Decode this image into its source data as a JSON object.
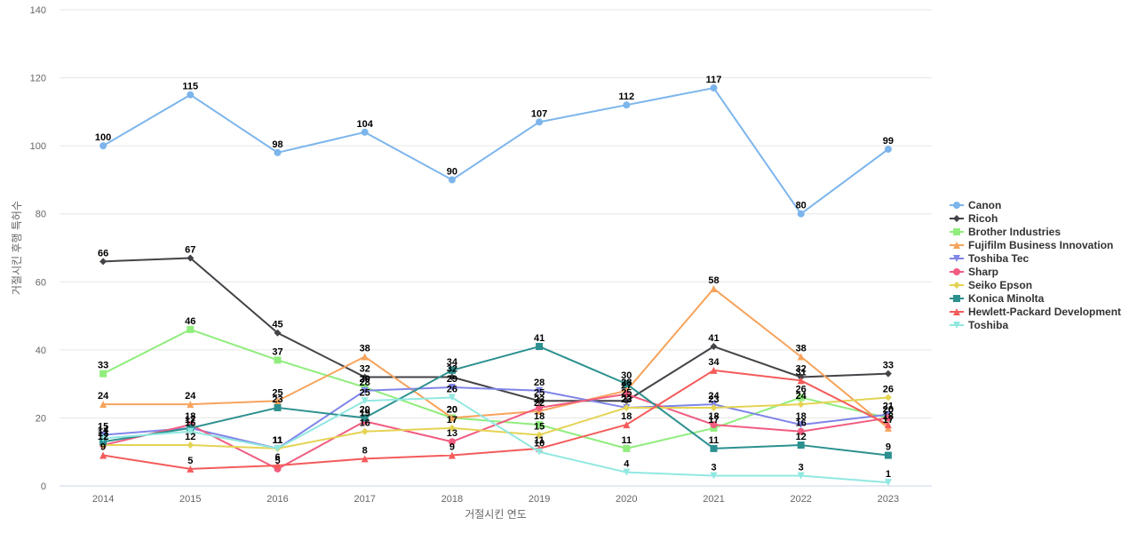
{
  "chart_data": {
    "type": "line",
    "title": "",
    "xlabel": "거절시킨 연도",
    "ylabel": "거절시킨 후행 특허수",
    "ylim": [
      0,
      140
    ],
    "yticks": [
      0,
      20,
      40,
      60,
      80,
      100,
      120,
      140
    ],
    "grid": true,
    "legend_position": "right",
    "categories": [
      "2014",
      "2015",
      "2016",
      "2017",
      "2018",
      "2019",
      "2020",
      "2021",
      "2022",
      "2023"
    ],
    "series": [
      {
        "name": "Canon",
        "color": "#7cb5ec",
        "marker": "circle",
        "values": [
          100,
          115,
          98,
          104,
          90,
          107,
          112,
          117,
          80,
          99
        ]
      },
      {
        "name": "Ricoh",
        "color": "#434348",
        "marker": "diamond",
        "values": [
          66,
          67,
          45,
          32,
          32,
          25,
          25,
          41,
          32,
          33
        ]
      },
      {
        "name": "Brother Industries",
        "color": "#90ed7d",
        "marker": "square",
        "values": [
          33,
          46,
          37,
          29,
          20,
          18,
          11,
          17,
          26,
          20
        ]
      },
      {
        "name": "Fujifilm Business Innovation",
        "color": "#f7a35c",
        "marker": "triangle",
        "values": [
          24,
          24,
          25,
          38,
          20,
          22,
          28,
          58,
          38,
          17
        ]
      },
      {
        "name": "Toshiba Tec",
        "color": "#8085e9",
        "marker": "triangle-down",
        "values": [
          15,
          17,
          11,
          28,
          29,
          28,
          23,
          24,
          18,
          21
        ]
      },
      {
        "name": "Sharp",
        "color": "#f15c80",
        "marker": "circle",
        "values": [
          12,
          18,
          5,
          19,
          13,
          23,
          27,
          18,
          16,
          20
        ]
      },
      {
        "name": "Seiko Epson",
        "color": "#e4d354",
        "marker": "diamond",
        "values": [
          12,
          12,
          11,
          16,
          17,
          15,
          23,
          23,
          24,
          26
        ]
      },
      {
        "name": "Konica Minolta",
        "color": "#2b908f",
        "marker": "square",
        "values": [
          13,
          17,
          23,
          20,
          34,
          41,
          30,
          11,
          12,
          9
        ]
      },
      {
        "name": "Hewlett-Packard Development",
        "color": "#f45b5b",
        "marker": "triangle",
        "values": [
          9,
          5,
          6,
          8,
          9,
          11,
          18,
          34,
          31,
          18
        ]
      },
      {
        "name": "Toshiba",
        "color": "#91e8e1",
        "marker": "triangle-down",
        "values": [
          14,
          16,
          11,
          25,
          26,
          10,
          4,
          3,
          3,
          1
        ]
      }
    ],
    "data_labels": [
      {
        "series": "Canon",
        "points": [
          0,
          1,
          2,
          3,
          4,
          5,
          6,
          7,
          8,
          9
        ]
      },
      {
        "series": "Ricoh",
        "points": [
          0,
          1,
          2,
          3,
          4,
          5,
          6,
          7,
          8,
          9
        ]
      },
      {
        "series": "Brother Industries",
        "points": [
          0,
          1,
          2,
          3,
          4,
          5,
          6,
          7,
          8,
          9
        ]
      },
      {
        "series": "Fujifilm Business Innovation",
        "points": [
          0,
          1,
          2,
          3,
          4,
          5,
          6,
          7,
          8,
          9
        ]
      },
      {
        "series": "Toshiba Tec",
        "points": [
          0,
          1,
          2,
          3,
          4,
          5,
          6,
          7,
          8,
          9
        ]
      },
      {
        "series": "Sharp",
        "points": [
          0,
          1,
          2,
          3,
          4,
          5,
          6,
          7,
          8,
          9
        ]
      },
      {
        "series": "Seiko Epson",
        "points": [
          0,
          1,
          2,
          3,
          4,
          5,
          6,
          7,
          8,
          9
        ]
      },
      {
        "series": "Konica Minolta",
        "points": [
          0,
          1,
          2,
          3,
          4,
          5,
          6,
          7,
          8,
          9
        ]
      },
      {
        "series": "Hewlett-Packard Development",
        "points": [
          0,
          1,
          2,
          3,
          4,
          5,
          6,
          7,
          8,
          9
        ]
      },
      {
        "series": "Toshiba",
        "points": [
          0,
          1,
          2,
          3,
          4,
          5,
          6,
          7,
          8,
          9
        ]
      }
    ]
  }
}
